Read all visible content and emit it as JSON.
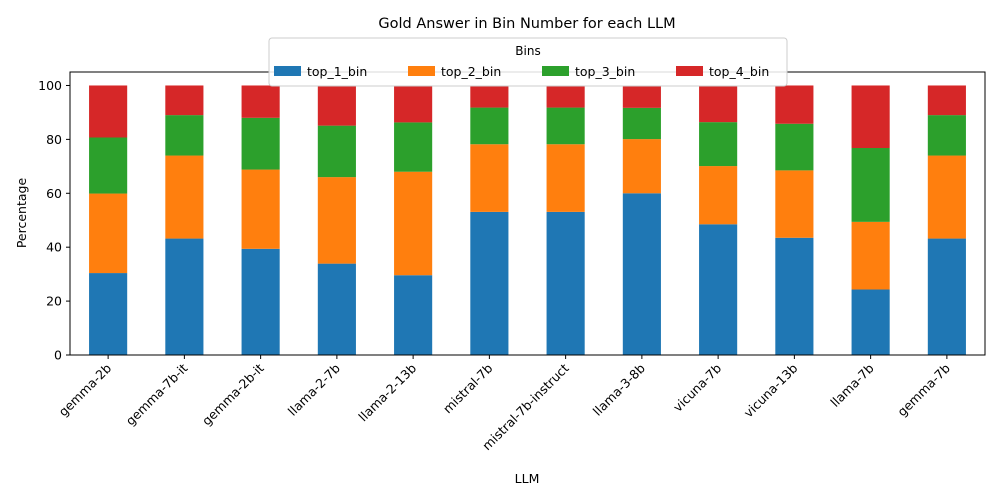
{
  "chart_data": {
    "type": "bar",
    "stacked": true,
    "title": "Gold Answer in Bin Number for each LLM",
    "xlabel": "LLM",
    "ylabel": "Percentage",
    "ylim": [
      0,
      105
    ],
    "yticks": [
      0,
      20,
      40,
      60,
      80,
      100
    ],
    "legend": {
      "title": "Bins",
      "placement": "top-center"
    },
    "grid": false,
    "categories": [
      "gemma-2b",
      "gemma-7b-it",
      "gemma-2b-it",
      "llama-2-7b",
      "llama-2-13b",
      "mistral-7b",
      "mistral-7b-instruct",
      "llama-3-8b",
      "vicuna-7b",
      "vicuna-13b",
      "llama-7b",
      "gemma-7b"
    ],
    "series": [
      {
        "name": "top_1_bin",
        "color": "#1f77b4",
        "values": [
          30.4,
          43.2,
          39.4,
          33.9,
          29.6,
          53.1,
          53.1,
          60.0,
          48.5,
          43.5,
          24.3,
          43.2
        ]
      },
      {
        "name": "top_2_bin",
        "color": "#ff7f0e",
        "values": [
          29.5,
          30.8,
          29.4,
          32.1,
          38.4,
          25.1,
          25.1,
          20.1,
          21.6,
          25.0,
          25.1,
          30.8
        ]
      },
      {
        "name": "top_3_bin",
        "color": "#2ca02c",
        "values": [
          20.8,
          15.0,
          19.2,
          19.1,
          18.3,
          13.6,
          13.6,
          11.6,
          16.3,
          17.3,
          27.4,
          15.0
        ]
      },
      {
        "name": "top_4_bin",
        "color": "#d62728",
        "values": [
          19.3,
          11.0,
          12.0,
          14.9,
          13.7,
          8.2,
          8.2,
          8.3,
          13.6,
          14.2,
          23.2,
          11.0
        ]
      }
    ]
  }
}
